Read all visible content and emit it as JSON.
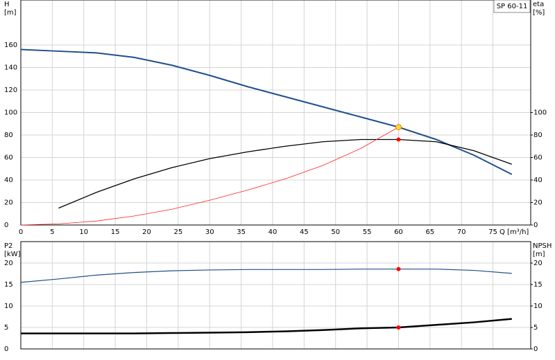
{
  "chart_data": [
    {
      "type": "line",
      "title": "SP 60-11",
      "ylabel": "H",
      "yunit": "[m]",
      "y2label": "eta",
      "y2unit": "[%]",
      "xlabel": "Q [m³/h]",
      "xlim": [
        0,
        81
      ],
      "xticks": [
        0,
        5,
        10,
        15,
        20,
        25,
        30,
        35,
        40,
        45,
        50,
        55,
        60,
        65,
        70,
        75
      ],
      "show_xtick_labels": true,
      "ylim": [
        0,
        200
      ],
      "yticks": [
        0,
        20,
        40,
        60,
        80,
        100,
        120,
        140,
        160
      ],
      "y2lim": [
        0,
        200
      ],
      "y2ticks": [
        0,
        20,
        40,
        60,
        80,
        100
      ],
      "grid": true,
      "series": [
        {
          "style": "line",
          "color": "#1f4e8c",
          "width": 2,
          "axis": "y",
          "x": [
            0,
            6,
            12,
            18,
            24,
            30,
            36,
            42,
            48,
            54,
            60,
            66,
            72,
            78
          ],
          "values": [
            156,
            154.5,
            153,
            149,
            142,
            133,
            123,
            114,
            105,
            96,
            87,
            76,
            62,
            45
          ]
        },
        {
          "style": "line",
          "color": "#000000",
          "width": 1.3,
          "axis": "y2",
          "x": [
            6,
            12,
            18,
            24,
            30,
            36,
            42,
            48,
            54,
            60,
            66,
            72,
            78
          ],
          "values": [
            15,
            29,
            41,
            51,
            59,
            65,
            70,
            74,
            76,
            76,
            74,
            66,
            54
          ]
        },
        {
          "style": "line",
          "color": "#ff2020",
          "width": 0.8,
          "axis": "y",
          "x": [
            0,
            6,
            12,
            18,
            24,
            30,
            36,
            42,
            48,
            54,
            60
          ],
          "values": [
            0,
            1,
            3.5,
            8,
            14,
            22,
            31,
            41,
            53,
            68,
            87
          ]
        },
        {
          "style": "point",
          "color": "#ffd23c",
          "axis": "y",
          "x": [
            60
          ],
          "values": [
            87
          ]
        },
        {
          "style": "point",
          "color": "#ff0000",
          "axis": "y2",
          "x": [
            60
          ],
          "values": [
            76
          ]
        }
      ]
    },
    {
      "type": "line",
      "ylabel": "P2",
      "yunit": "[kW]",
      "y2label": "NPSH",
      "y2unit": "[m]",
      "xlim": [
        0,
        81
      ],
      "xticks": [
        0,
        5,
        10,
        15,
        20,
        25,
        30,
        35,
        40,
        45,
        50,
        55,
        60,
        65,
        70,
        75
      ],
      "show_xtick_labels": false,
      "ylim": [
        0,
        25
      ],
      "yticks": [
        0,
        5,
        10,
        15,
        20
      ],
      "y2lim": [
        0,
        25
      ],
      "y2ticks": [
        0,
        5,
        10,
        15,
        20
      ],
      "grid": true,
      "series": [
        {
          "style": "line",
          "color": "#1f4e8c",
          "width": 1.2,
          "axis": "y",
          "x": [
            0,
            6,
            12,
            18,
            24,
            30,
            36,
            42,
            48,
            54,
            60,
            66,
            72,
            78
          ],
          "values": [
            15.5,
            16.3,
            17.2,
            17.8,
            18.2,
            18.4,
            18.5,
            18.5,
            18.5,
            18.6,
            18.6,
            18.6,
            18.3,
            17.6
          ]
        },
        {
          "style": "line",
          "color": "#000000",
          "width": 2.5,
          "axis": "y2",
          "x": [
            0,
            6,
            12,
            18,
            24,
            30,
            36,
            42,
            48,
            54,
            60,
            66,
            72,
            78
          ],
          "values": [
            3.6,
            3.6,
            3.6,
            3.6,
            3.7,
            3.8,
            3.9,
            4.1,
            4.4,
            4.8,
            5.0,
            5.6,
            6.2,
            7.0
          ]
        },
        {
          "style": "point",
          "color": "#ff0000",
          "axis": "y",
          "x": [
            60
          ],
          "values": [
            18.6
          ]
        },
        {
          "style": "point",
          "color": "#ff0000",
          "axis": "y2",
          "x": [
            60
          ],
          "values": [
            5.0
          ]
        }
      ]
    }
  ]
}
